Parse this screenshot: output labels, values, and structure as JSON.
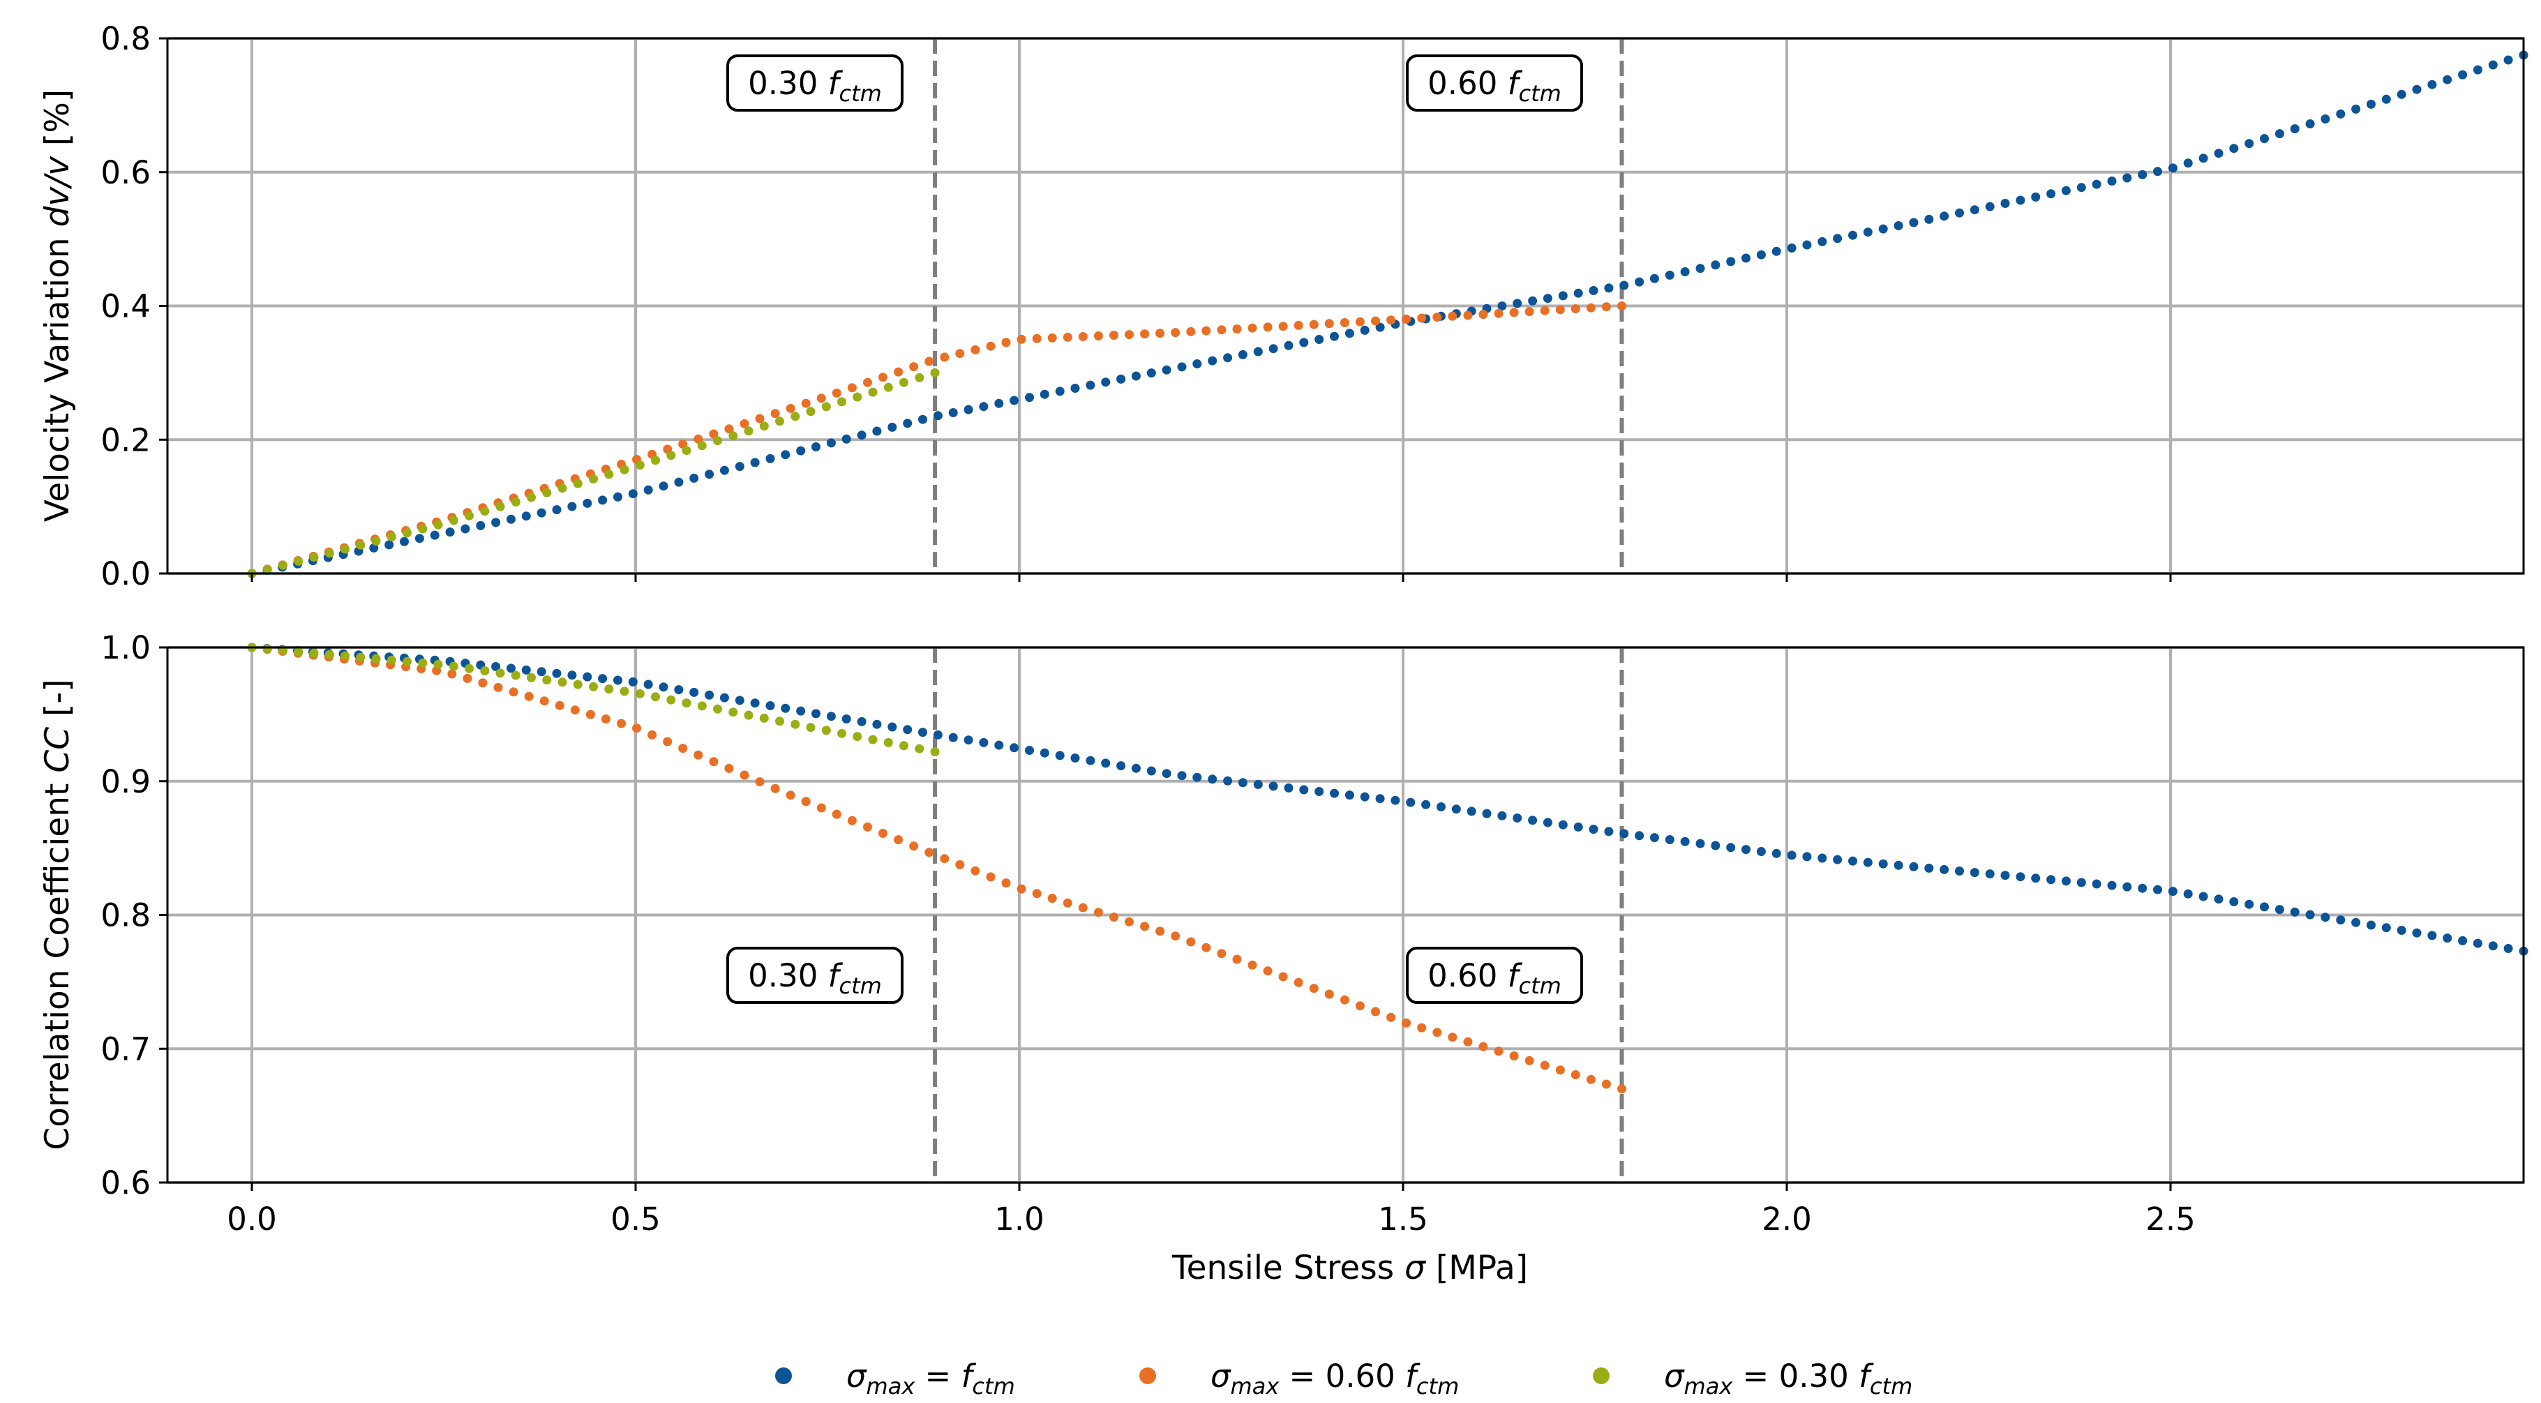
{
  "colors": {
    "blue": "#0c5497",
    "orange": "#e96f24",
    "green": "#9aad12",
    "vline": "#7f7f7f",
    "grid": "#b0b0b0"
  },
  "xaxis": {
    "label": "Tensile Stress σ [MPa]",
    "label_plain": "Tensile Stress",
    "label_symbol": "σ",
    "label_unit": "[MPa]",
    "range": [
      -0.11,
      2.96
    ],
    "ticks": [
      0.0,
      0.5,
      1.0,
      1.5,
      2.0,
      2.5
    ],
    "tick_labels": [
      "0.0",
      "0.5",
      "1.0",
      "1.5",
      "2.0",
      "2.5"
    ]
  },
  "vertical_lines": [
    0.89,
    1.785
  ],
  "annotations": {
    "low": {
      "prefix": "0.30",
      "sym": "f",
      "sub": "ctm",
      "text": "0.30 f_ctm"
    },
    "high": {
      "prefix": "0.60",
      "sym": "f",
      "sub": "ctm",
      "text": "0.60 f_ctm"
    }
  },
  "legend": [
    {
      "series": "blue",
      "label": "σ_max = f_ctm",
      "lhs": "σ",
      "lhs_sub": "max",
      "eq": " = ",
      "coef": "",
      "sym": "f",
      "sub": "ctm"
    },
    {
      "series": "orange",
      "label": "σ_max = 0.60 f_ctm",
      "lhs": "σ",
      "lhs_sub": "max",
      "eq": " = ",
      "coef": "0.60 ",
      "sym": "f",
      "sub": "ctm"
    },
    {
      "series": "green",
      "label": "σ_max = 0.30 f_ctm",
      "lhs": "σ",
      "lhs_sub": "max",
      "eq": " = ",
      "coef": "0.30 ",
      "sym": "f",
      "sub": "ctm"
    }
  ],
  "chart_data": [
    {
      "type": "scatter",
      "title": "",
      "xlabel": "Tensile Stress σ [MPa]",
      "ylabel": "Velocity Variation dv/v [%]",
      "ylabel_text": "Velocity Variation",
      "ylabel_sym": "dv/v",
      "ylabel_unit": "[%]",
      "xlim": [
        -0.11,
        2.96
      ],
      "ylim": [
        0.0,
        0.8
      ],
      "yticks": [
        0.0,
        0.2,
        0.4,
        0.6,
        0.8
      ],
      "ytick_labels": [
        "0.0",
        "0.2",
        "0.4",
        "0.6",
        "0.8"
      ],
      "grid": true,
      "series": [
        {
          "name": "σ_max = f_ctm",
          "color_key": "blue",
          "x_range": [
            0.0,
            2.96
          ],
          "n": 150,
          "x": [
            0.0,
            0.5,
            0.89,
            1.5,
            1.785,
            2.0,
            2.5,
            2.96
          ],
          "y": [
            0.0,
            0.12,
            0.235,
            0.375,
            0.43,
            0.485,
            0.605,
            0.775
          ]
        },
        {
          "name": "σ_max = 0.60 f_ctm",
          "color_key": "orange",
          "x_range": [
            0.0,
            1.785
          ],
          "n": 90,
          "x": [
            0.0,
            0.25,
            0.5,
            0.75,
            0.89,
            1.0,
            1.2,
            1.5,
            1.785
          ],
          "y": [
            0.0,
            0.08,
            0.17,
            0.265,
            0.32,
            0.35,
            0.36,
            0.38,
            0.4
          ]
        },
        {
          "name": "σ_max = 0.30 f_ctm",
          "color_key": "green",
          "x_range": [
            0.0,
            0.89
          ],
          "n": 45,
          "x": [
            0.0,
            0.25,
            0.5,
            0.75,
            0.89
          ],
          "y": [
            0.0,
            0.075,
            0.16,
            0.25,
            0.3
          ]
        }
      ]
    },
    {
      "type": "scatter",
      "title": "",
      "xlabel": "Tensile Stress σ [MPa]",
      "ylabel": "Correlation Coefficient CC [-]",
      "ylabel_text": "Correlation Coefficient",
      "ylabel_sym": "CC",
      "ylabel_unit": "[-]",
      "xlim": [
        -0.11,
        2.96
      ],
      "ylim": [
        0.6,
        1.0
      ],
      "yticks": [
        0.6,
        0.7,
        0.8,
        0.9,
        1.0
      ],
      "ytick_labels": [
        "0.6",
        "0.7",
        "0.8",
        "0.9",
        "1.0"
      ],
      "grid": true,
      "series": [
        {
          "name": "σ_max = f_ctm",
          "color_key": "blue",
          "x_range": [
            0.0,
            2.96
          ],
          "n": 150,
          "x": [
            0.0,
            0.25,
            0.5,
            0.89,
            1.2,
            1.5,
            1.785,
            2.0,
            2.5,
            2.96
          ],
          "y": [
            1.0,
            0.99,
            0.974,
            0.935,
            0.905,
            0.885,
            0.861,
            0.845,
            0.818,
            0.773
          ]
        },
        {
          "name": "σ_max = 0.60 f_ctm",
          "color_key": "orange",
          "x_range": [
            0.0,
            1.785
          ],
          "n": 90,
          "x": [
            0.0,
            0.25,
            0.5,
            0.7,
            0.89,
            1.0,
            1.2,
            1.5,
            1.785
          ],
          "y": [
            1.0,
            0.982,
            0.94,
            0.89,
            0.845,
            0.82,
            0.785,
            0.72,
            0.67
          ]
        },
        {
          "name": "σ_max = 0.30 f_ctm",
          "color_key": "green",
          "x_range": [
            0.0,
            0.89
          ],
          "n": 45,
          "x": [
            0.0,
            0.25,
            0.5,
            0.89
          ],
          "y": [
            1.0,
            0.987,
            0.966,
            0.922
          ]
        }
      ]
    }
  ]
}
